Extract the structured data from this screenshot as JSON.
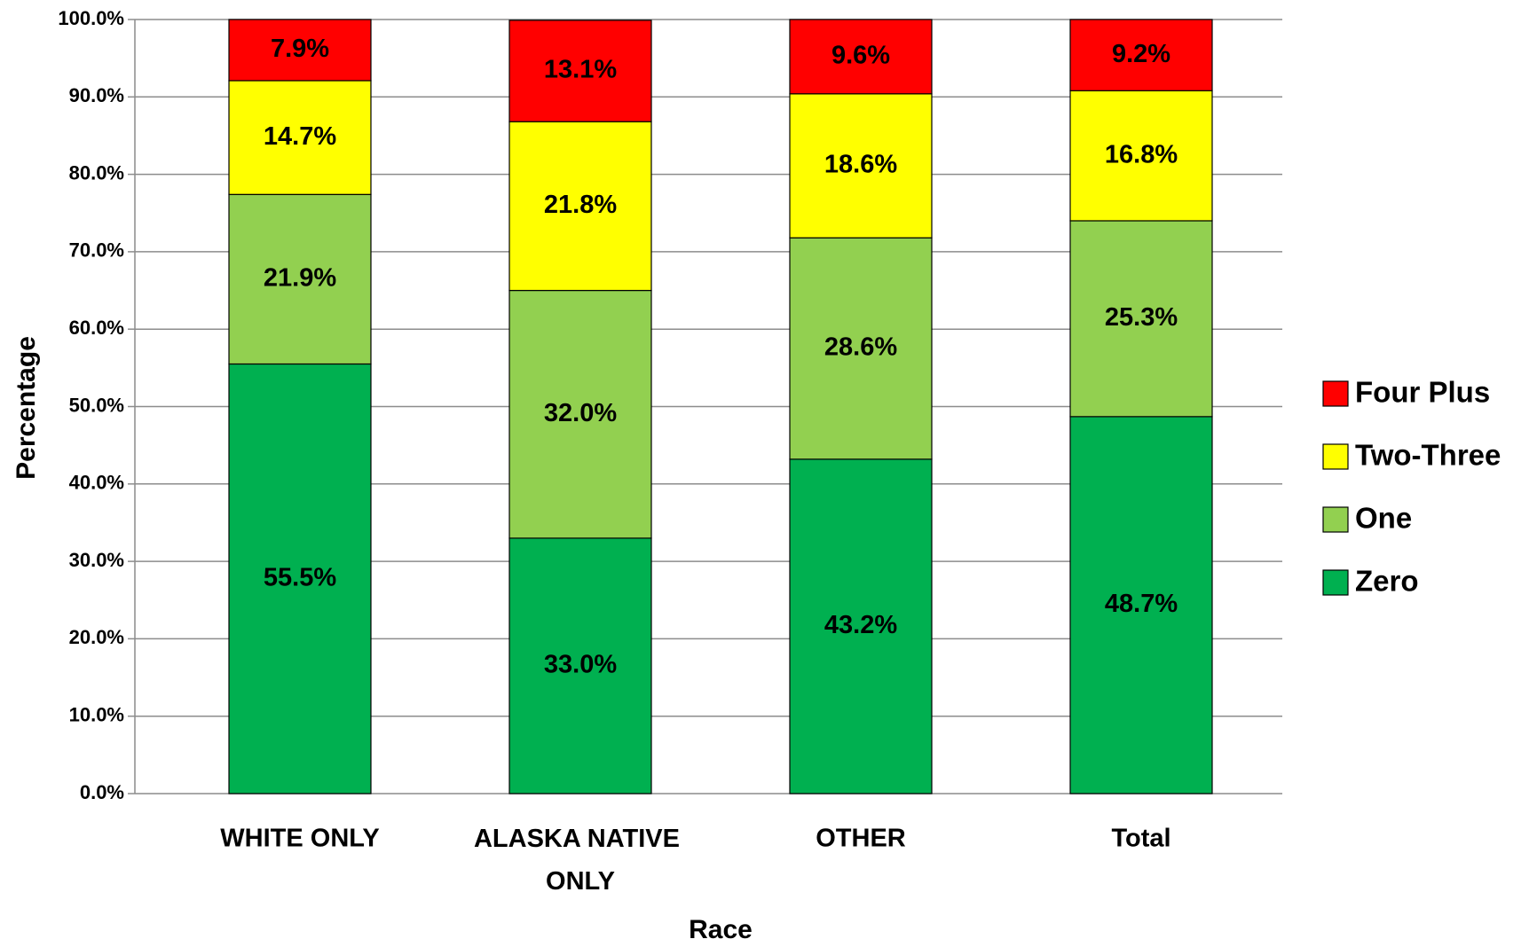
{
  "chart_data": {
    "type": "stacked-bar",
    "x_label": "Race",
    "y_label": "Percentage",
    "categories": [
      "WHITE ONLY",
      "ALASKA NATIVE ONLY",
      "OTHER",
      "Total"
    ],
    "series": [
      {
        "name": "Zero",
        "color": "#00b050",
        "values": [
          55.5,
          33.0,
          43.2,
          48.7
        ],
        "value_labels": [
          "55.5%",
          "33.0%",
          "43.2%",
          "48.7%"
        ]
      },
      {
        "name": "One",
        "color": "#92d050",
        "values": [
          21.9,
          32.0,
          28.6,
          25.3
        ],
        "value_labels": [
          "21.9%",
          "32.0%",
          "28.6%",
          "25.3%"
        ]
      },
      {
        "name": "Two-Three",
        "color": "#ffff00",
        "values": [
          14.7,
          21.8,
          18.6,
          16.8
        ],
        "value_labels": [
          "14.7%",
          "21.8%",
          "18.6%",
          "16.8%"
        ]
      },
      {
        "name": "Four Plus",
        "color": "#ff0000",
        "values": [
          7.9,
          13.1,
          9.6,
          9.2
        ],
        "value_labels": [
          "7.9%",
          "13.1%",
          "9.6%",
          "9.2%"
        ]
      }
    ],
    "ylim": [
      0,
      100
    ],
    "yticks": [
      {
        "value": 0,
        "label": "0.0%"
      },
      {
        "value": 10,
        "label": "10.0%"
      },
      {
        "value": 20,
        "label": "20.0%"
      },
      {
        "value": 30,
        "label": "30.0%"
      },
      {
        "value": 40,
        "label": "40.0%"
      },
      {
        "value": 50,
        "label": "50.0%"
      },
      {
        "value": 60,
        "label": "60.0%"
      },
      {
        "value": 70,
        "label": "70.0%"
      },
      {
        "value": 80,
        "label": "80.0%"
      },
      {
        "value": 90,
        "label": "90.0%"
      },
      {
        "value": 100,
        "label": "100.0%"
      }
    ],
    "grid": true,
    "legend": "right"
  }
}
